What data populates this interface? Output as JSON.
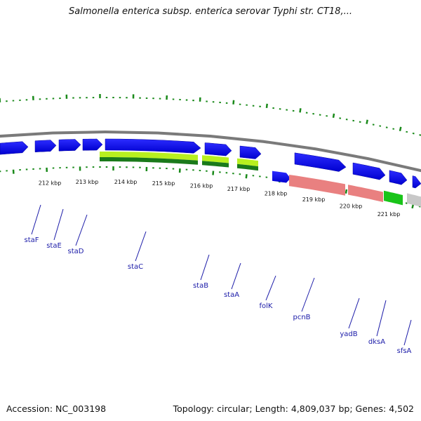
{
  "title": "Salmonella enterica subsp. enterica serovar Typhi str. CT18,...",
  "footer": {
    "accession": "Accession: NC_003198",
    "summary": "Topology: circular; Length: 4,809,037 bp; Genes: 4,502"
  },
  "colors": {
    "cds": "#1414e6",
    "cds_light": "#5a5aff",
    "backbone": "#7a7a7a",
    "gc_light": "#b8f020",
    "gc_dark": "#1a7a1a",
    "pink": "#e98080",
    "green": "#19c419",
    "gray": "#c8c8c8",
    "dots": "#1a8a1a",
    "label": "#1a1aa8"
  },
  "scale_labels": [
    "212 kbp",
    "213 kbp",
    "214 kbp",
    "215 kbp",
    "216 kbp",
    "217 kbp",
    "218 kbp",
    "219 kbp",
    "220 kbp",
    "221 kbp"
  ],
  "genes": [
    "staF",
    "staE",
    "staD",
    "staC",
    "staB",
    "staA",
    "folK",
    "pcnB",
    "yadB",
    "dksA",
    "sfsA"
  ]
}
